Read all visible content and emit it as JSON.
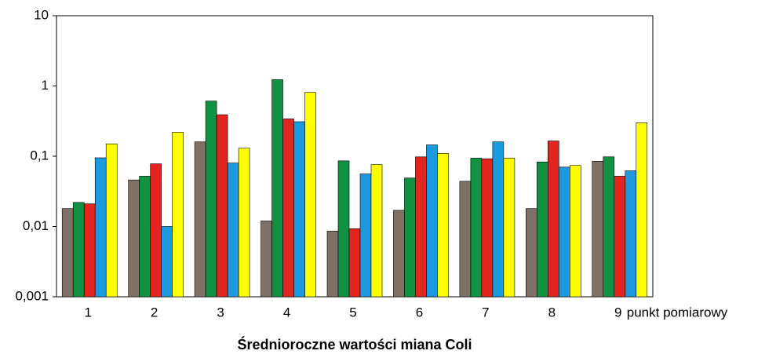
{
  "chart_data": {
    "type": "bar",
    "title": "Średnioroczne wartości miana Coli",
    "x_label": "punkt pomiarowy",
    "categories": [
      "1",
      "2",
      "3",
      "4",
      "5",
      "6",
      "7",
      "8",
      "9"
    ],
    "series": [
      {
        "color": "#7f7166",
        "values": [
          0.018,
          0.046,
          0.16,
          0.012,
          0.0086,
          0.017,
          0.044,
          0.018,
          0.085
        ]
      },
      {
        "color": "#119142",
        "values": [
          0.022,
          0.052,
          0.61,
          1.23,
          0.086,
          0.049,
          0.094,
          0.083,
          0.098
        ]
      },
      {
        "color": "#e0261e",
        "values": [
          0.021,
          0.078,
          0.39,
          0.34,
          0.0093,
          0.098,
          0.092,
          0.165,
          0.052
        ]
      },
      {
        "color": "#1c9ae0",
        "values": [
          0.095,
          0.01,
          0.08,
          0.31,
          0.056,
          0.145,
          0.16,
          0.07,
          0.062
        ]
      },
      {
        "color": "#ffff00",
        "values": [
          0.15,
          0.22,
          0.13,
          0.81,
          0.076,
          0.11,
          0.094,
          0.074,
          0.3
        ]
      }
    ],
    "log_scale": true,
    "ylim": [
      0.001,
      10
    ],
    "yticks": [
      {
        "value": 0.001,
        "label": "0,001"
      },
      {
        "value": 0.01,
        "label": "0,01"
      },
      {
        "value": 0.1,
        "label": "0,1"
      },
      1,
      10
    ],
    "grid": false
  }
}
